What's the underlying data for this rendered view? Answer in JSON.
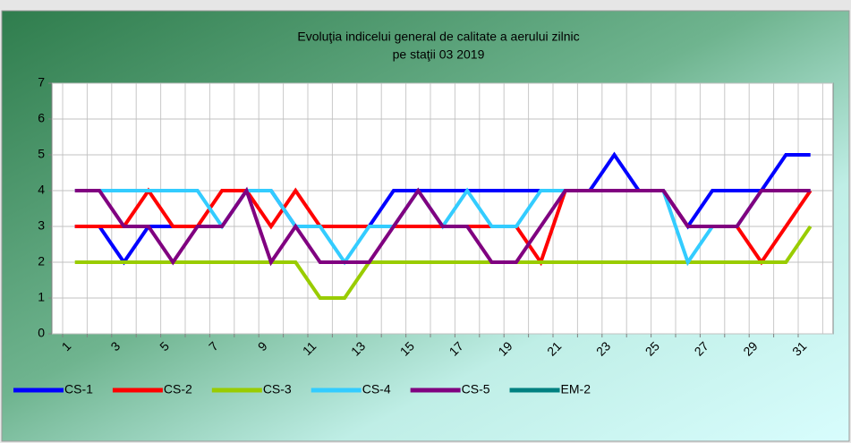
{
  "chart_data": {
    "type": "line",
    "title": [
      "Evoluţia indicelui general de calitate a aerului zilnic",
      "pe staţii 03 2019"
    ],
    "categories": [
      "1",
      null,
      "3",
      null,
      "5",
      null,
      "7",
      null,
      "9",
      null,
      "11",
      null,
      "13",
      null,
      "15",
      null,
      "17",
      null,
      "19",
      null,
      "21",
      null,
      "23",
      null,
      "25",
      null,
      "27",
      null,
      "29",
      null,
      "31"
    ],
    "series": [
      {
        "name": "CS-1",
        "color": "#0000ff",
        "values": [
          3,
          3,
          2,
          3,
          3,
          3,
          3,
          4,
          4,
          3,
          3,
          3,
          3,
          4,
          4,
          4,
          4,
          4,
          4,
          4,
          4,
          4,
          5,
          4,
          4,
          3,
          4,
          4,
          4,
          5,
          5
        ]
      },
      {
        "name": "CS-2",
        "color": "#ff0000",
        "values": [
          3,
          3,
          3,
          4,
          3,
          3,
          4,
          4,
          3,
          4,
          3,
          3,
          3,
          3,
          3,
          3,
          3,
          3,
          3,
          2,
          4,
          4,
          4,
          4,
          4,
          3,
          3,
          3,
          2,
          3,
          4
        ]
      },
      {
        "name": "CS-3",
        "color": "#99cc00",
        "values": [
          2,
          2,
          2,
          2,
          2,
          2,
          2,
          2,
          2,
          2,
          1,
          1,
          2,
          2,
          2,
          2,
          2,
          2,
          2,
          2,
          2,
          2,
          2,
          2,
          2,
          2,
          2,
          2,
          2,
          2,
          3
        ]
      },
      {
        "name": "CS-4",
        "color": "#33ccff",
        "values": [
          4,
          4,
          4,
          4,
          4,
          4,
          3,
          4,
          4,
          3,
          3,
          2,
          3,
          3,
          4,
          3,
          4,
          3,
          3,
          4,
          4,
          4,
          4,
          4,
          4,
          2,
          3,
          3,
          4,
          4,
          4
        ]
      },
      {
        "name": "CS-5",
        "color": "#800080",
        "values": [
          4,
          4,
          3,
          3,
          2,
          3,
          3,
          4,
          2,
          3,
          2,
          2,
          2,
          3,
          4,
          3,
          3,
          2,
          2,
          3,
          4,
          4,
          4,
          4,
          4,
          3,
          3,
          3,
          4,
          4,
          4
        ]
      },
      {
        "name": "EM-2",
        "color": "#008080",
        "values": [
          null,
          null,
          null,
          null,
          null,
          null,
          null,
          null,
          null,
          null,
          null,
          null,
          null,
          null,
          null,
          null,
          null,
          null,
          null,
          null,
          null,
          null,
          null,
          null,
          null,
          null,
          null,
          null,
          null,
          null,
          null
        ]
      }
    ],
    "ylim": [
      0,
      7
    ],
    "yticks": [
      0,
      1,
      2,
      3,
      4,
      5,
      6,
      7
    ],
    "grid": true,
    "legend": "bottom"
  }
}
